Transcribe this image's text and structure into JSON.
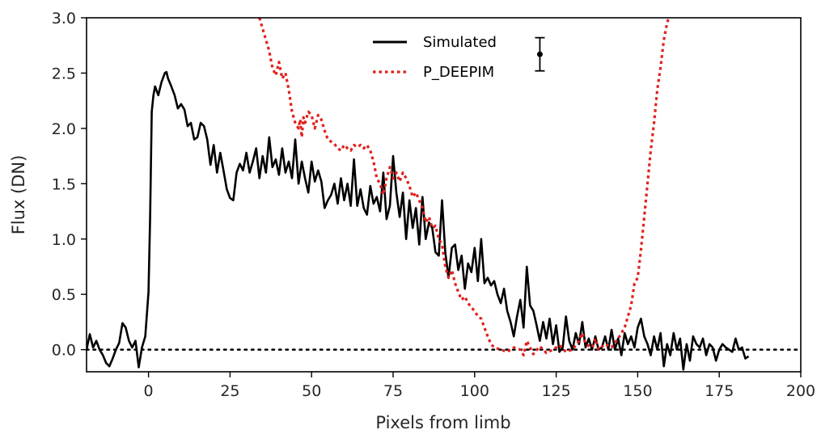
{
  "chart_data": {
    "type": "line",
    "title": "",
    "xlabel": "Pixels from limb",
    "ylabel": "Flux (DN)",
    "xlim": [
      -19,
      200
    ],
    "ylim": [
      -0.2,
      3.0
    ],
    "xticks": [
      0,
      25,
      50,
      75,
      100,
      125,
      150,
      175,
      200
    ],
    "yticks": [
      0.0,
      0.5,
      1.0,
      1.5,
      2.0,
      2.5,
      3.0
    ],
    "xtick_labels": [
      "0",
      "25",
      "50",
      "75",
      "100",
      "125",
      "150",
      "175",
      "200"
    ],
    "ytick_labels": [
      "0.0",
      "0.5",
      "1.0",
      "1.5",
      "2.0",
      "2.5",
      "3.0"
    ],
    "legend_position": "top-center",
    "zero_reference_line": {
      "y": 0.0,
      "style": "dotted",
      "color": "#000000"
    },
    "error_bar": {
      "x": 120,
      "y": 2.67,
      "low": 2.52,
      "high": 2.82
    },
    "series": [
      {
        "name": "Simulated",
        "color": "#000000",
        "style": "solid",
        "points": [
          [
            -19,
            0.0
          ],
          [
            -18,
            0.14
          ],
          [
            -17,
            0.02
          ],
          [
            -16,
            0.08
          ],
          [
            -15,
            0.0
          ],
          [
            -14,
            -0.05
          ],
          [
            -13,
            -0.12
          ],
          [
            -12,
            -0.15
          ],
          [
            -11,
            -0.08
          ],
          [
            -10,
            0.0
          ],
          [
            -9,
            0.06
          ],
          [
            -8,
            0.24
          ],
          [
            -7,
            0.2
          ],
          [
            -6,
            0.08
          ],
          [
            -5,
            0.02
          ],
          [
            -4,
            0.08
          ],
          [
            -3,
            -0.16
          ],
          [
            -2,
            0.02
          ],
          [
            -1,
            0.12
          ],
          [
            0,
            0.52
          ],
          [
            0.5,
            1.2
          ],
          [
            1,
            2.15
          ],
          [
            1.5,
            2.3
          ],
          [
            2,
            2.38
          ],
          [
            3,
            2.3
          ],
          [
            4,
            2.42
          ],
          [
            5,
            2.5
          ],
          [
            5.5,
            2.51
          ],
          [
            6,
            2.45
          ],
          [
            7,
            2.38
          ],
          [
            8,
            2.3
          ],
          [
            9,
            2.18
          ],
          [
            10,
            2.22
          ],
          [
            11,
            2.17
          ],
          [
            12,
            2.02
          ],
          [
            13,
            2.05
          ],
          [
            14,
            1.9
          ],
          [
            15,
            1.92
          ],
          [
            16,
            2.05
          ],
          [
            17,
            2.02
          ],
          [
            18,
            1.9
          ],
          [
            19,
            1.67
          ],
          [
            20,
            1.85
          ],
          [
            21,
            1.6
          ],
          [
            22,
            1.78
          ],
          [
            23,
            1.62
          ],
          [
            24,
            1.45
          ],
          [
            25,
            1.37
          ],
          [
            26,
            1.35
          ],
          [
            27,
            1.6
          ],
          [
            28,
            1.68
          ],
          [
            29,
            1.62
          ],
          [
            30,
            1.78
          ],
          [
            31,
            1.6
          ],
          [
            32,
            1.7
          ],
          [
            33,
            1.82
          ],
          [
            34,
            1.55
          ],
          [
            35,
            1.75
          ],
          [
            36,
            1.6
          ],
          [
            37,
            1.92
          ],
          [
            38,
            1.65
          ],
          [
            39,
            1.72
          ],
          [
            40,
            1.58
          ],
          [
            41,
            1.82
          ],
          [
            42,
            1.6
          ],
          [
            43,
            1.7
          ],
          [
            44,
            1.55
          ],
          [
            45,
            1.9
          ],
          [
            46,
            1.5
          ],
          [
            47,
            1.7
          ],
          [
            48,
            1.55
          ],
          [
            49,
            1.42
          ],
          [
            50,
            1.7
          ],
          [
            51,
            1.52
          ],
          [
            52,
            1.62
          ],
          [
            53,
            1.52
          ],
          [
            54,
            1.28
          ],
          [
            55,
            1.35
          ],
          [
            56,
            1.4
          ],
          [
            57,
            1.5
          ],
          [
            58,
            1.32
          ],
          [
            59,
            1.55
          ],
          [
            60,
            1.35
          ],
          [
            61,
            1.5
          ],
          [
            62,
            1.3
          ],
          [
            63,
            1.72
          ],
          [
            64,
            1.3
          ],
          [
            65,
            1.45
          ],
          [
            66,
            1.28
          ],
          [
            67,
            1.22
          ],
          [
            68,
            1.48
          ],
          [
            69,
            1.32
          ],
          [
            70,
            1.38
          ],
          [
            71,
            1.25
          ],
          [
            72,
            1.6
          ],
          [
            73,
            1.18
          ],
          [
            74,
            1.3
          ],
          [
            75,
            1.75
          ],
          [
            76,
            1.42
          ],
          [
            77,
            1.2
          ],
          [
            78,
            1.42
          ],
          [
            79,
            1.0
          ],
          [
            80,
            1.35
          ],
          [
            81,
            1.1
          ],
          [
            82,
            1.28
          ],
          [
            83,
            0.95
          ],
          [
            84,
            1.38
          ],
          [
            85,
            1.0
          ],
          [
            86,
            1.15
          ],
          [
            87,
            1.1
          ],
          [
            88,
            0.88
          ],
          [
            89,
            0.85
          ],
          [
            90,
            1.35
          ],
          [
            91,
            0.88
          ],
          [
            92,
            0.65
          ],
          [
            93,
            0.92
          ],
          [
            94,
            0.95
          ],
          [
            95,
            0.72
          ],
          [
            96,
            0.85
          ],
          [
            97,
            0.55
          ],
          [
            98,
            0.78
          ],
          [
            99,
            0.7
          ],
          [
            100,
            0.92
          ],
          [
            101,
            0.62
          ],
          [
            102,
            1.0
          ],
          [
            103,
            0.6
          ],
          [
            104,
            0.65
          ],
          [
            105,
            0.58
          ],
          [
            106,
            0.62
          ],
          [
            107,
            0.5
          ],
          [
            108,
            0.42
          ],
          [
            109,
            0.55
          ],
          [
            110,
            0.35
          ],
          [
            111,
            0.25
          ],
          [
            112,
            0.12
          ],
          [
            113,
            0.3
          ],
          [
            114,
            0.45
          ],
          [
            115,
            0.2
          ],
          [
            116,
            0.75
          ],
          [
            117,
            0.4
          ],
          [
            118,
            0.35
          ],
          [
            119,
            0.22
          ],
          [
            120,
            0.08
          ],
          [
            121,
            0.25
          ],
          [
            122,
            0.1
          ],
          [
            123,
            0.28
          ],
          [
            124,
            0.05
          ],
          [
            125,
            0.22
          ],
          [
            126,
            -0.02
          ],
          [
            127,
            0.02
          ],
          [
            128,
            0.3
          ],
          [
            129,
            0.08
          ],
          [
            130,
            0.0
          ],
          [
            131,
            0.15
          ],
          [
            132,
            0.05
          ],
          [
            133,
            0.25
          ],
          [
            134,
            0.02
          ],
          [
            135,
            0.1
          ],
          [
            136,
            0.0
          ],
          [
            137,
            0.12
          ],
          [
            138,
            0.0
          ],
          [
            139,
            0.02
          ],
          [
            140,
            0.12
          ],
          [
            141,
            0.0
          ],
          [
            142,
            0.18
          ],
          [
            143,
            0.0
          ],
          [
            144,
            0.1
          ],
          [
            145,
            -0.05
          ],
          [
            146,
            0.15
          ],
          [
            147,
            0.05
          ],
          [
            148,
            0.12
          ],
          [
            149,
            0.02
          ],
          [
            150,
            0.2
          ],
          [
            151,
            0.28
          ],
          [
            152,
            0.12
          ],
          [
            153,
            0.05
          ],
          [
            154,
            -0.05
          ],
          [
            155,
            0.12
          ],
          [
            156,
            0.0
          ],
          [
            157,
            0.15
          ],
          [
            158,
            -0.15
          ],
          [
            159,
            0.05
          ],
          [
            160,
            -0.05
          ],
          [
            161,
            0.15
          ],
          [
            162,
            0.0
          ],
          [
            163,
            0.1
          ],
          [
            164,
            -0.18
          ],
          [
            165,
            0.05
          ],
          [
            166,
            -0.1
          ],
          [
            167,
            0.12
          ],
          [
            168,
            0.05
          ],
          [
            169,
            0.02
          ],
          [
            170,
            0.1
          ],
          [
            171,
            -0.05
          ],
          [
            172,
            0.05
          ],
          [
            173,
            0.02
          ],
          [
            174,
            -0.1
          ],
          [
            175,
            0.0
          ],
          [
            176,
            0.05
          ],
          [
            177,
            0.02
          ],
          [
            178,
            0.0
          ],
          [
            179,
            -0.02
          ],
          [
            180,
            0.1
          ],
          [
            181,
            0.0
          ],
          [
            182,
            0.02
          ],
          [
            183,
            -0.08
          ],
          [
            184,
            -0.06
          ]
        ]
      },
      {
        "name": "P_DEEPIM",
        "color": "#e0201c",
        "style": "dotted",
        "points": [
          [
            34,
            3.0
          ],
          [
            36,
            2.8
          ],
          [
            37,
            2.7
          ],
          [
            38,
            2.55
          ],
          [
            39,
            2.48
          ],
          [
            40,
            2.6
          ],
          [
            41,
            2.45
          ],
          [
            42,
            2.5
          ],
          [
            43,
            2.35
          ],
          [
            44,
            2.15
          ],
          [
            45,
            2.05
          ],
          [
            46,
            2.0
          ],
          [
            46.5,
            2.08
          ],
          [
            47,
            1.92
          ],
          [
            47.5,
            2.1
          ],
          [
            48,
            2.05
          ],
          [
            49,
            2.15
          ],
          [
            50,
            2.12
          ],
          [
            51,
            2.0
          ],
          [
            52,
            2.12
          ],
          [
            53,
            2.08
          ],
          [
            54,
            1.98
          ],
          [
            55,
            1.9
          ],
          [
            56,
            1.88
          ],
          [
            57,
            1.86
          ],
          [
            58,
            1.82
          ],
          [
            59,
            1.8
          ],
          [
            60,
            1.85
          ],
          [
            61,
            1.82
          ],
          [
            62,
            1.8
          ],
          [
            63,
            1.85
          ],
          [
            64,
            1.83
          ],
          [
            65,
            1.85
          ],
          [
            66,
            1.82
          ],
          [
            67,
            1.85
          ],
          [
            68,
            1.8
          ],
          [
            69,
            1.7
          ],
          [
            70,
            1.55
          ],
          [
            71,
            1.5
          ],
          [
            72,
            1.4
          ],
          [
            73,
            1.55
          ],
          [
            74,
            1.65
          ],
          [
            75,
            1.55
          ],
          [
            76,
            1.6
          ],
          [
            77,
            1.52
          ],
          [
            78,
            1.6
          ],
          [
            79,
            1.55
          ],
          [
            80,
            1.48
          ],
          [
            81,
            1.38
          ],
          [
            82,
            1.42
          ],
          [
            83,
            1.35
          ],
          [
            84,
            1.28
          ],
          [
            85,
            1.15
          ],
          [
            86,
            1.2
          ],
          [
            87,
            1.1
          ],
          [
            88,
            1.12
          ],
          [
            89,
            1.0
          ],
          [
            90,
            0.95
          ],
          [
            91,
            0.75
          ],
          [
            92,
            0.65
          ],
          [
            93,
            0.72
          ],
          [
            94,
            0.6
          ],
          [
            95,
            0.52
          ],
          [
            96,
            0.45
          ],
          [
            97,
            0.48
          ],
          [
            98,
            0.42
          ],
          [
            99,
            0.38
          ],
          [
            100,
            0.35
          ],
          [
            101,
            0.3
          ],
          [
            102,
            0.28
          ],
          [
            103,
            0.2
          ],
          [
            104,
            0.12
          ],
          [
            105,
            0.05
          ],
          [
            106,
            0.02
          ],
          [
            108,
            0.0
          ],
          [
            110,
            -0.02
          ],
          [
            112,
            0.02
          ],
          [
            114,
            0.0
          ],
          [
            115,
            -0.05
          ],
          [
            116,
            0.08
          ],
          [
            117,
            0.02
          ],
          [
            118,
            -0.04
          ],
          [
            120,
            0.03
          ],
          [
            122,
            -0.03
          ],
          [
            124,
            0.0
          ],
          [
            126,
            0.04
          ],
          [
            128,
            -0.02
          ],
          [
            130,
            0.0
          ],
          [
            132,
            0.08
          ],
          [
            133,
            0.15
          ],
          [
            134,
            0.05
          ],
          [
            136,
            0.02
          ],
          [
            137,
            0.1
          ],
          [
            138,
            0.0
          ],
          [
            140,
            0.05
          ],
          [
            142,
            0.02
          ],
          [
            144,
            0.1
          ],
          [
            146,
            0.2
          ],
          [
            147,
            0.3
          ],
          [
            148,
            0.4
          ],
          [
            149,
            0.6
          ],
          [
            150,
            0.65
          ],
          [
            151,
            0.9
          ],
          [
            152,
            1.2
          ],
          [
            153,
            1.5
          ],
          [
            154,
            1.8
          ],
          [
            155,
            2.05
          ],
          [
            156,
            2.35
          ],
          [
            157,
            2.55
          ],
          [
            158,
            2.8
          ],
          [
            159,
            2.95
          ],
          [
            159.5,
            3.0
          ]
        ]
      }
    ]
  }
}
